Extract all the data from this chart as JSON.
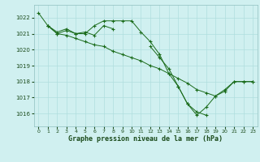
{
  "xlabel": "Graphe pression niveau de la mer (hPa)",
  "xlim": [
    -0.5,
    23.5
  ],
  "ylim": [
    1015.2,
    1022.8
  ],
  "yticks": [
    1016,
    1017,
    1018,
    1019,
    1020,
    1021,
    1022
  ],
  "xticks": [
    0,
    1,
    2,
    3,
    4,
    5,
    6,
    7,
    8,
    9,
    10,
    11,
    12,
    13,
    14,
    15,
    16,
    17,
    18,
    19,
    20,
    21,
    22,
    23
  ],
  "bg_color": "#d0f0f0",
  "grid_color": "#b0dede",
  "line_color": "#1a6b1a",
  "line1": [
    1022.3,
    1021.5,
    1021.0,
    1021.2,
    1021.0,
    1021.0,
    1021.5,
    1021.8,
    1021.8,
    1021.8,
    1021.8,
    1021.1,
    1020.5,
    1019.7,
    1018.5,
    1017.7,
    1016.6,
    1016.1,
    1015.9,
    null,
    null,
    null,
    null,
    null
  ],
  "line2": [
    null,
    1021.5,
    1021.1,
    1021.3,
    1021.0,
    1021.1,
    1020.9,
    1021.5,
    1021.3,
    null,
    null,
    null,
    null,
    null,
    null,
    null,
    null,
    null,
    null,
    null,
    null,
    null,
    null,
    null
  ],
  "line3": [
    null,
    null,
    null,
    null,
    null,
    null,
    null,
    null,
    null,
    null,
    null,
    null,
    1020.2,
    1019.5,
    1018.8,
    1017.7,
    1016.6,
    1015.9,
    1016.4,
    1017.1,
    1017.4,
    1018.0,
    1018.0,
    1018.0
  ],
  "line4": [
    null,
    1021.5,
    1021.0,
    1020.9,
    1020.7,
    1020.5,
    1020.3,
    1020.2,
    1019.9,
    1019.7,
    1019.5,
    1019.3,
    1019.0,
    1018.8,
    1018.5,
    1018.2,
    1017.9,
    1017.5,
    1017.3,
    1017.1,
    1017.5,
    1018.0,
    1018.0,
    1018.0
  ]
}
